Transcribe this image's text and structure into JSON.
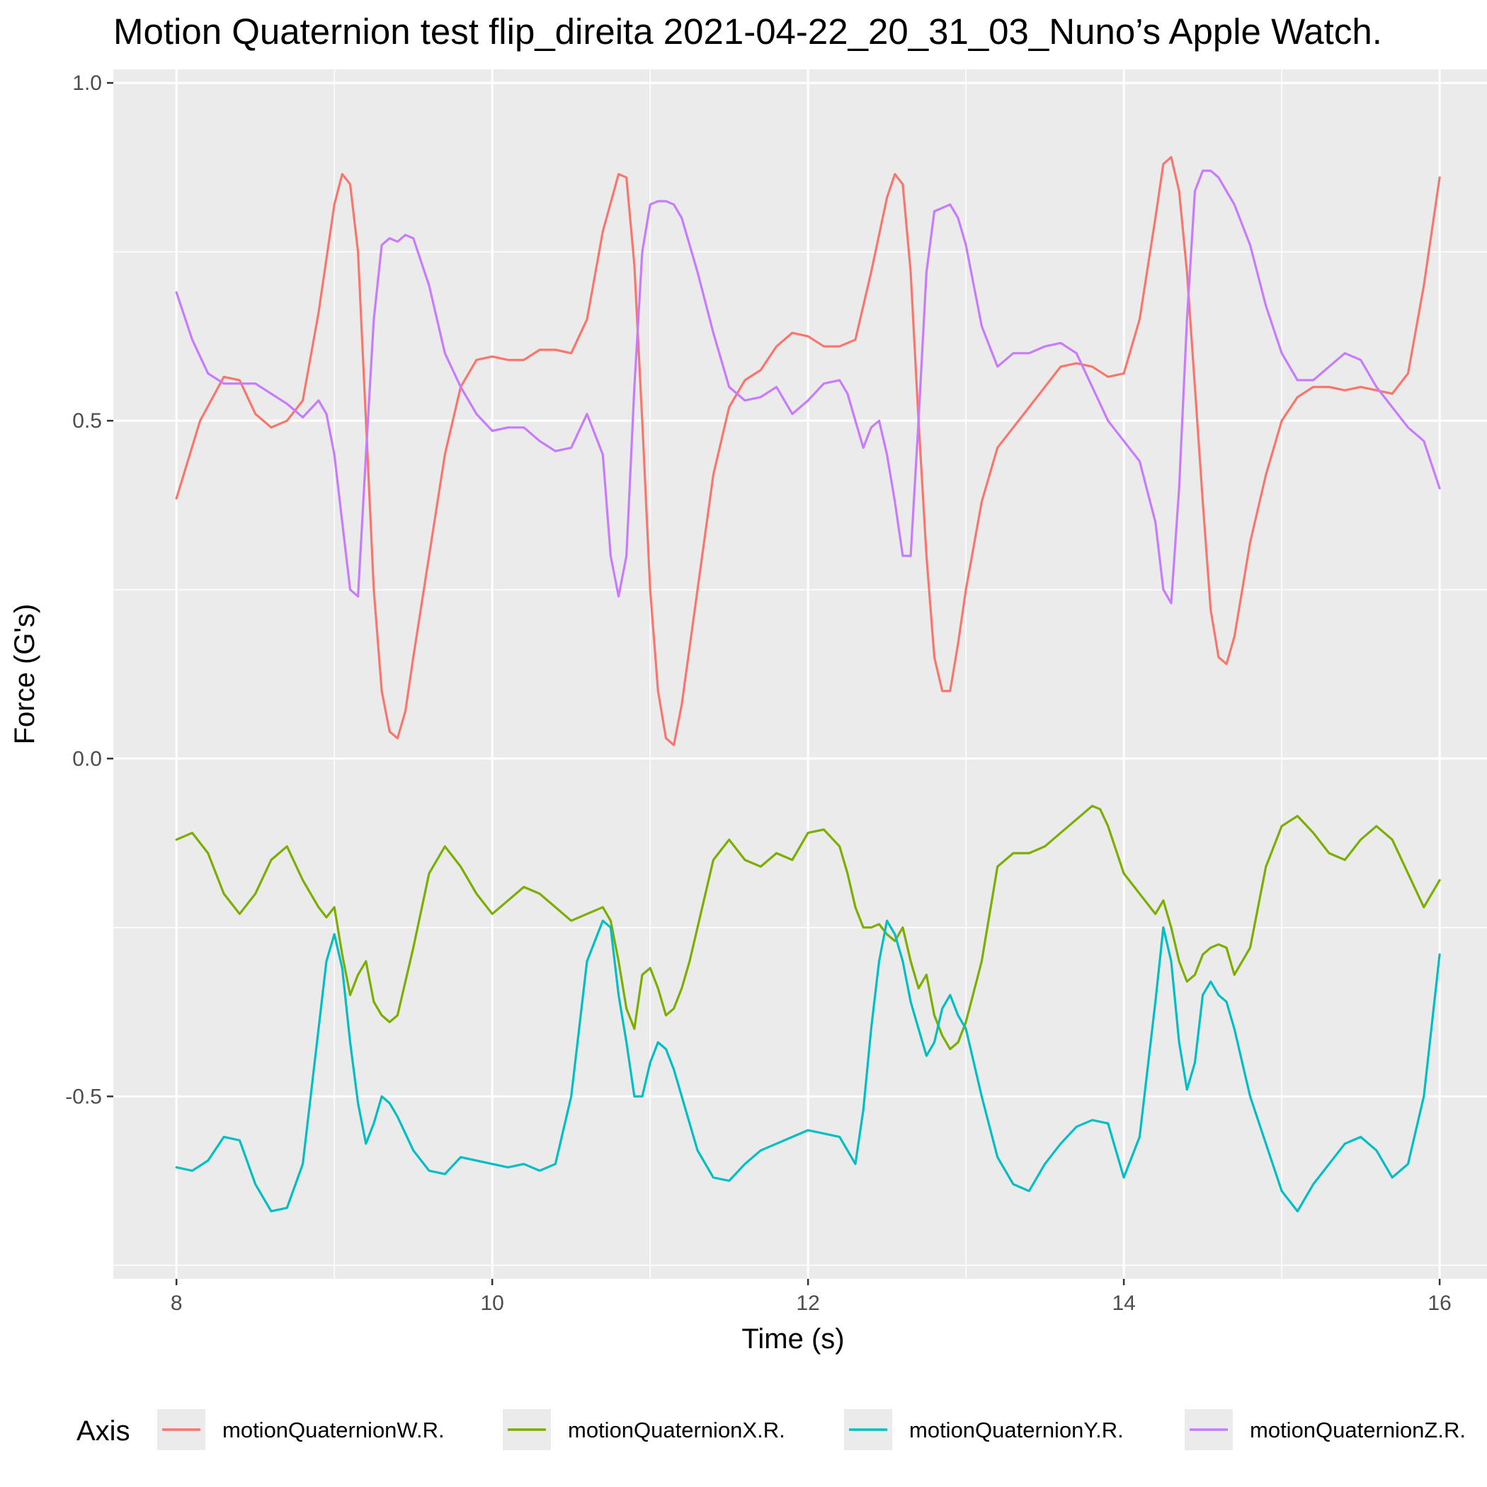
{
  "chart_data": {
    "type": "line",
    "title": "Motion Quaternion test flip_direita 2021-04-22_20_31_03_Nuno’s Apple Watch.",
    "xlabel": "Time (s)",
    "ylabel": "Force (G's)",
    "xlim": [
      7.6,
      16.3
    ],
    "ylim": [
      -0.77,
      1.02
    ],
    "xticks": [
      8,
      10,
      12,
      14,
      16
    ],
    "xtick_labels": [
      "8",
      "10",
      "12",
      "14",
      "16"
    ],
    "yticks": [
      -0.5,
      0.0,
      0.5,
      1.0
    ],
    "ytick_labels": [
      "-0.5",
      "0.0",
      "0.5",
      "1.0"
    ],
    "minor_xticks": [
      9,
      11,
      13,
      15
    ],
    "minor_yticks": [
      -0.75,
      -0.25,
      0.25,
      0.75
    ],
    "grid": true,
    "legend": {
      "title": "Axis",
      "position": "bottom"
    },
    "series": [
      {
        "name": "motionQuaternionW.R.",
        "color": "#F8766D",
        "x": [
          8.0,
          8.15,
          8.3,
          8.4,
          8.5,
          8.6,
          8.7,
          8.8,
          8.9,
          9.0,
          9.05,
          9.1,
          9.15,
          9.2,
          9.25,
          9.3,
          9.35,
          9.4,
          9.45,
          9.5,
          9.6,
          9.7,
          9.8,
          9.9,
          10.0,
          10.1,
          10.2,
          10.3,
          10.4,
          10.5,
          10.6,
          10.7,
          10.8,
          10.85,
          10.9,
          10.95,
          11.0,
          11.05,
          11.1,
          11.15,
          11.2,
          11.3,
          11.4,
          11.5,
          11.6,
          11.7,
          11.8,
          11.9,
          12.0,
          12.1,
          12.2,
          12.3,
          12.4,
          12.5,
          12.55,
          12.6,
          12.65,
          12.7,
          12.75,
          12.8,
          12.85,
          12.9,
          12.95,
          13.0,
          13.1,
          13.2,
          13.3,
          13.4,
          13.5,
          13.6,
          13.7,
          13.8,
          13.9,
          14.0,
          14.1,
          14.2,
          14.25,
          14.3,
          14.35,
          14.4,
          14.45,
          14.5,
          14.55,
          14.6,
          14.65,
          14.7,
          14.75,
          14.8,
          14.9,
          15.0,
          15.1,
          15.2,
          15.3,
          15.4,
          15.5,
          15.6,
          15.7,
          15.8,
          15.9,
          16.0
        ],
        "y": [
          0.385,
          0.5,
          0.565,
          0.56,
          0.51,
          0.49,
          0.5,
          0.53,
          0.66,
          0.82,
          0.865,
          0.85,
          0.75,
          0.5,
          0.25,
          0.1,
          0.04,
          0.03,
          0.07,
          0.15,
          0.3,
          0.45,
          0.55,
          0.59,
          0.595,
          0.59,
          0.59,
          0.605,
          0.605,
          0.6,
          0.65,
          0.78,
          0.865,
          0.86,
          0.73,
          0.5,
          0.25,
          0.1,
          0.03,
          0.02,
          0.08,
          0.25,
          0.42,
          0.52,
          0.56,
          0.575,
          0.61,
          0.63,
          0.625,
          0.61,
          0.61,
          0.62,
          0.72,
          0.83,
          0.865,
          0.85,
          0.72,
          0.5,
          0.3,
          0.15,
          0.1,
          0.1,
          0.17,
          0.25,
          0.38,
          0.46,
          0.49,
          0.52,
          0.55,
          0.58,
          0.585,
          0.58,
          0.565,
          0.57,
          0.65,
          0.8,
          0.88,
          0.89,
          0.84,
          0.72,
          0.55,
          0.38,
          0.22,
          0.15,
          0.14,
          0.18,
          0.25,
          0.32,
          0.42,
          0.5,
          0.535,
          0.55,
          0.55,
          0.545,
          0.55,
          0.545,
          0.54,
          0.57,
          0.7,
          0.86
        ]
      },
      {
        "name": "motionQuaternionX.R.",
        "color": "#7CAE00",
        "x": [
          8.0,
          8.1,
          8.2,
          8.3,
          8.4,
          8.5,
          8.6,
          8.7,
          8.8,
          8.9,
          8.95,
          9.0,
          9.05,
          9.1,
          9.15,
          9.2,
          9.25,
          9.3,
          9.35,
          9.4,
          9.5,
          9.6,
          9.7,
          9.8,
          9.9,
          10.0,
          10.1,
          10.2,
          10.3,
          10.4,
          10.5,
          10.6,
          10.7,
          10.75,
          10.8,
          10.85,
          10.9,
          10.95,
          11.0,
          11.05,
          11.1,
          11.15,
          11.2,
          11.25,
          11.3,
          11.4,
          11.5,
          11.6,
          11.7,
          11.8,
          11.9,
          12.0,
          12.1,
          12.2,
          12.25,
          12.3,
          12.35,
          12.4,
          12.45,
          12.5,
          12.55,
          12.6,
          12.65,
          12.7,
          12.75,
          12.8,
          12.85,
          12.9,
          12.95,
          13.0,
          13.1,
          13.2,
          13.3,
          13.4,
          13.5,
          13.6,
          13.7,
          13.8,
          13.85,
          13.9,
          14.0,
          14.1,
          14.2,
          14.25,
          14.3,
          14.35,
          14.4,
          14.45,
          14.5,
          14.55,
          14.6,
          14.65,
          14.7,
          14.8,
          14.9,
          15.0,
          15.1,
          15.2,
          15.3,
          15.4,
          15.5,
          15.6,
          15.7,
          15.8,
          15.9,
          16.0
        ],
        "y": [
          -0.12,
          -0.11,
          -0.14,
          -0.2,
          -0.23,
          -0.2,
          -0.15,
          -0.13,
          -0.18,
          -0.22,
          -0.235,
          -0.22,
          -0.29,
          -0.35,
          -0.32,
          -0.3,
          -0.36,
          -0.38,
          -0.39,
          -0.38,
          -0.28,
          -0.17,
          -0.13,
          -0.16,
          -0.2,
          -0.23,
          -0.21,
          -0.19,
          -0.2,
          -0.22,
          -0.24,
          -0.23,
          -0.22,
          -0.24,
          -0.3,
          -0.37,
          -0.4,
          -0.32,
          -0.31,
          -0.34,
          -0.38,
          -0.37,
          -0.34,
          -0.3,
          -0.25,
          -0.15,
          -0.12,
          -0.15,
          -0.16,
          -0.14,
          -0.15,
          -0.11,
          -0.105,
          -0.13,
          -0.17,
          -0.22,
          -0.25,
          -0.25,
          -0.245,
          -0.26,
          -0.27,
          -0.25,
          -0.3,
          -0.34,
          -0.32,
          -0.38,
          -0.41,
          -0.43,
          -0.42,
          -0.39,
          -0.3,
          -0.16,
          -0.14,
          -0.14,
          -0.13,
          -0.11,
          -0.09,
          -0.07,
          -0.075,
          -0.1,
          -0.17,
          -0.2,
          -0.23,
          -0.21,
          -0.25,
          -0.3,
          -0.33,
          -0.32,
          -0.29,
          -0.28,
          -0.275,
          -0.28,
          -0.32,
          -0.28,
          -0.16,
          -0.1,
          -0.085,
          -0.11,
          -0.14,
          -0.15,
          -0.12,
          -0.1,
          -0.12,
          -0.17,
          -0.22,
          -0.18
        ]
      },
      {
        "name": "motionQuaternionY.R.",
        "color": "#00BFC4",
        "x": [
          8.0,
          8.1,
          8.2,
          8.3,
          8.4,
          8.5,
          8.6,
          8.7,
          8.8,
          8.9,
          8.95,
          9.0,
          9.05,
          9.1,
          9.15,
          9.2,
          9.25,
          9.3,
          9.35,
          9.4,
          9.5,
          9.6,
          9.7,
          9.8,
          9.9,
          10.0,
          10.1,
          10.2,
          10.3,
          10.4,
          10.5,
          10.6,
          10.7,
          10.75,
          10.8,
          10.85,
          10.9,
          10.95,
          11.0,
          11.05,
          11.1,
          11.15,
          11.2,
          11.3,
          11.4,
          11.5,
          11.6,
          11.7,
          11.8,
          11.9,
          12.0,
          12.1,
          12.2,
          12.25,
          12.3,
          12.35,
          12.4,
          12.45,
          12.5,
          12.55,
          12.6,
          12.65,
          12.7,
          12.75,
          12.8,
          12.85,
          12.9,
          12.95,
          13.0,
          13.1,
          13.2,
          13.3,
          13.4,
          13.5,
          13.6,
          13.7,
          13.8,
          13.9,
          14.0,
          14.1,
          14.2,
          14.25,
          14.3,
          14.35,
          14.4,
          14.45,
          14.5,
          14.55,
          14.6,
          14.65,
          14.7,
          14.8,
          14.9,
          15.0,
          15.1,
          15.2,
          15.3,
          15.4,
          15.5,
          15.6,
          15.7,
          15.8,
          15.9,
          16.0
        ],
        "y": [
          -0.605,
          -0.61,
          -0.595,
          -0.56,
          -0.565,
          -0.63,
          -0.67,
          -0.665,
          -0.6,
          -0.4,
          -0.3,
          -0.26,
          -0.31,
          -0.42,
          -0.51,
          -0.57,
          -0.54,
          -0.5,
          -0.51,
          -0.53,
          -0.58,
          -0.61,
          -0.615,
          -0.59,
          -0.595,
          -0.6,
          -0.605,
          -0.6,
          -0.61,
          -0.6,
          -0.5,
          -0.3,
          -0.24,
          -0.25,
          -0.35,
          -0.42,
          -0.5,
          -0.5,
          -0.45,
          -0.42,
          -0.43,
          -0.46,
          -0.5,
          -0.58,
          -0.62,
          -0.625,
          -0.6,
          -0.58,
          -0.57,
          -0.56,
          -0.55,
          -0.555,
          -0.56,
          -0.58,
          -0.6,
          -0.52,
          -0.4,
          -0.3,
          -0.24,
          -0.26,
          -0.3,
          -0.36,
          -0.4,
          -0.44,
          -0.42,
          -0.37,
          -0.35,
          -0.38,
          -0.4,
          -0.5,
          -0.59,
          -0.63,
          -0.64,
          -0.6,
          -0.57,
          -0.545,
          -0.535,
          -0.54,
          -0.62,
          -0.56,
          -0.36,
          -0.25,
          -0.3,
          -0.42,
          -0.49,
          -0.45,
          -0.35,
          -0.33,
          -0.35,
          -0.36,
          -0.4,
          -0.5,
          -0.57,
          -0.64,
          -0.67,
          -0.63,
          -0.6,
          -0.57,
          -0.56,
          -0.58,
          -0.62,
          -0.6,
          -0.5,
          -0.29
        ]
      },
      {
        "name": "motionQuaternionZ.R.",
        "color": "#C77CFF",
        "x": [
          8.0,
          8.1,
          8.2,
          8.3,
          8.4,
          8.5,
          8.6,
          8.7,
          8.8,
          8.9,
          8.95,
          9.0,
          9.05,
          9.1,
          9.15,
          9.2,
          9.25,
          9.3,
          9.35,
          9.4,
          9.45,
          9.5,
          9.6,
          9.7,
          9.8,
          9.9,
          10.0,
          10.1,
          10.2,
          10.3,
          10.4,
          10.5,
          10.6,
          10.7,
          10.75,
          10.8,
          10.85,
          10.9,
          10.95,
          11.0,
          11.05,
          11.1,
          11.15,
          11.2,
          11.3,
          11.4,
          11.5,
          11.6,
          11.7,
          11.8,
          11.9,
          12.0,
          12.1,
          12.2,
          12.25,
          12.3,
          12.35,
          12.4,
          12.45,
          12.5,
          12.55,
          12.6,
          12.65,
          12.7,
          12.75,
          12.8,
          12.85,
          12.9,
          12.95,
          13.0,
          13.1,
          13.2,
          13.3,
          13.4,
          13.5,
          13.6,
          13.7,
          13.8,
          13.9,
          14.0,
          14.1,
          14.2,
          14.25,
          14.3,
          14.35,
          14.4,
          14.45,
          14.5,
          14.55,
          14.6,
          14.7,
          14.8,
          14.9,
          15.0,
          15.1,
          15.2,
          15.3,
          15.4,
          15.5,
          15.6,
          15.7,
          15.8,
          15.9,
          16.0
        ],
        "y": [
          0.69,
          0.62,
          0.57,
          0.555,
          0.555,
          0.555,
          0.54,
          0.525,
          0.505,
          0.53,
          0.51,
          0.45,
          0.35,
          0.25,
          0.24,
          0.45,
          0.65,
          0.76,
          0.77,
          0.765,
          0.775,
          0.77,
          0.7,
          0.6,
          0.55,
          0.51,
          0.485,
          0.49,
          0.49,
          0.47,
          0.455,
          0.46,
          0.51,
          0.45,
          0.3,
          0.24,
          0.3,
          0.55,
          0.75,
          0.82,
          0.825,
          0.825,
          0.82,
          0.8,
          0.72,
          0.63,
          0.55,
          0.53,
          0.535,
          0.55,
          0.51,
          0.53,
          0.555,
          0.56,
          0.54,
          0.5,
          0.46,
          0.49,
          0.5,
          0.45,
          0.38,
          0.3,
          0.3,
          0.5,
          0.72,
          0.81,
          0.815,
          0.82,
          0.8,
          0.76,
          0.64,
          0.58,
          0.6,
          0.6,
          0.61,
          0.615,
          0.6,
          0.55,
          0.5,
          0.47,
          0.44,
          0.35,
          0.25,
          0.23,
          0.4,
          0.65,
          0.84,
          0.87,
          0.87,
          0.86,
          0.82,
          0.76,
          0.67,
          0.6,
          0.56,
          0.56,
          0.58,
          0.6,
          0.59,
          0.55,
          0.52,
          0.49,
          0.47,
          0.4
        ]
      }
    ]
  }
}
